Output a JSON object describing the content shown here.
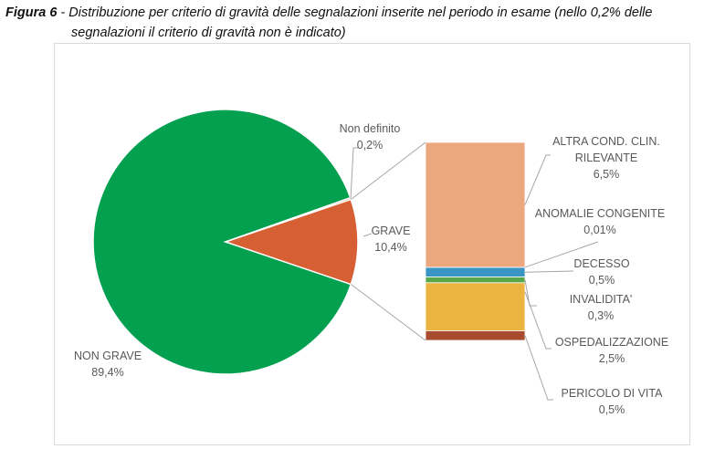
{
  "caption": {
    "figure_label": "Figura 6",
    "separator": " - ",
    "line1": "Distribuzione per criterio di gravità delle segnalazioni inserite nel periodo in esame (nello 0,2% delle",
    "line2": "segnalazioni il criterio di gravità non è indicato)"
  },
  "chart_data": {
    "type": "pie-of-bar",
    "title": "",
    "pie": [
      {
        "label": "NON GRAVE",
        "value": 89.4,
        "value_label": "89,4%",
        "color": "#03A04F"
      },
      {
        "label": "GRAVE",
        "value": 10.4,
        "value_label": "10,4%",
        "color": "#D75F34"
      },
      {
        "label": "Non definito",
        "value": 0.2,
        "value_label": "0,2%",
        "color": "#D75F34"
      }
    ],
    "bar_breakdown_of": "GRAVE",
    "bar": [
      {
        "label": "ALTRA COND. CLIN. RILEVANTE",
        "lines": [
          "ALTRA COND. CLIN.",
          "RILEVANTE"
        ],
        "value": 6.5,
        "value_label": "6,5%",
        "color": "#EDA77E"
      },
      {
        "label": "ANOMALIE CONGENITE",
        "lines": [
          "ANOMALIE CONGENITE"
        ],
        "value": 0.01,
        "value_label": "0,01%",
        "color": "#4472C4"
      },
      {
        "label": "DECESSO",
        "lines": [
          "DECESSO"
        ],
        "value": 0.5,
        "value_label": "0,5%",
        "color": "#3A94C4"
      },
      {
        "label": "INVALIDITA'",
        "lines": [
          "INVALIDITA'"
        ],
        "value": 0.3,
        "value_label": "0,3%",
        "color": "#58A84A"
      },
      {
        "label": "OSPEDALIZZAZIONE",
        "lines": [
          "OSPEDALIZZAZIONE"
        ],
        "value": 2.5,
        "value_label": "2,5%",
        "color": "#EBB33F"
      },
      {
        "label": "PERICOLO DI VITA",
        "lines": [
          "PERICOLO DI VITA"
        ],
        "value": 0.5,
        "value_label": "0,5%",
        "color": "#A84B2E"
      }
    ]
  }
}
